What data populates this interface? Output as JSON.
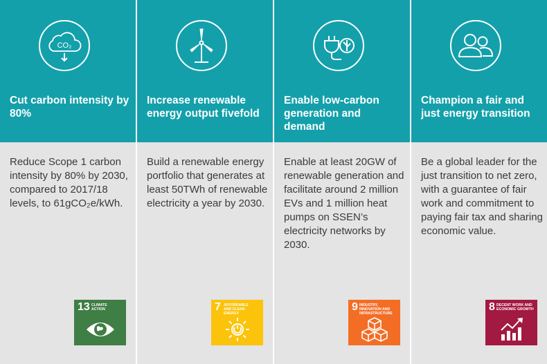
{
  "colors": {
    "header_bg": "#13a0ab",
    "body_bg": "#e4e4e4",
    "sdg13": "#3f7e44",
    "sdg7": "#fcc30b",
    "sdg9": "#f36d25",
    "sdg8": "#a21942"
  },
  "columns": [
    {
      "icon": "co2-cloud-icon",
      "icon_text": "CO₂",
      "title": "Cut carbon intensity by 80%",
      "body": "Reduce Scope 1 carbon intensity by 80% by 2030, compared to 2017/18 levels, to 61gCO₂e/kWh.",
      "sdg": {
        "number": "13",
        "label": "CLIMATE ACTION",
        "icon": "eye-globe-icon"
      }
    },
    {
      "icon": "wind-turbine-icon",
      "title": "Increase renewable energy output fivefold",
      "body": "Build a renewable energy portfolio that generates at least 50TWh of renewable electricity a year by 2030.",
      "sdg": {
        "number": "7",
        "label": "AFFORDABLE AND CLEAN ENERGY",
        "icon": "sun-power-icon"
      }
    },
    {
      "icon": "plug-leaf-icon",
      "title": "Enable low-carbon generation and demand",
      "body": "Enable at least 20GW of renewable generation and facilitate around 2 million EVs and 1 million heat pumps on SSEN’s electricity networks by 2030.",
      "sdg": {
        "number": "9",
        "label": "INDUSTRY, INNOVATION AND INFRASTRUCTURE",
        "icon": "cubes-icon"
      }
    },
    {
      "icon": "people-icon",
      "title": "Champion a fair and just energy transition",
      "body": "Be a global leader for the just transition to net zero, with a guarantee of fair work and commitment to paying fair tax and sharing economic value.",
      "sdg": {
        "number": "8",
        "label": "DECENT WORK AND ECONOMIC GROWTH",
        "icon": "growth-chart-icon"
      }
    }
  ]
}
